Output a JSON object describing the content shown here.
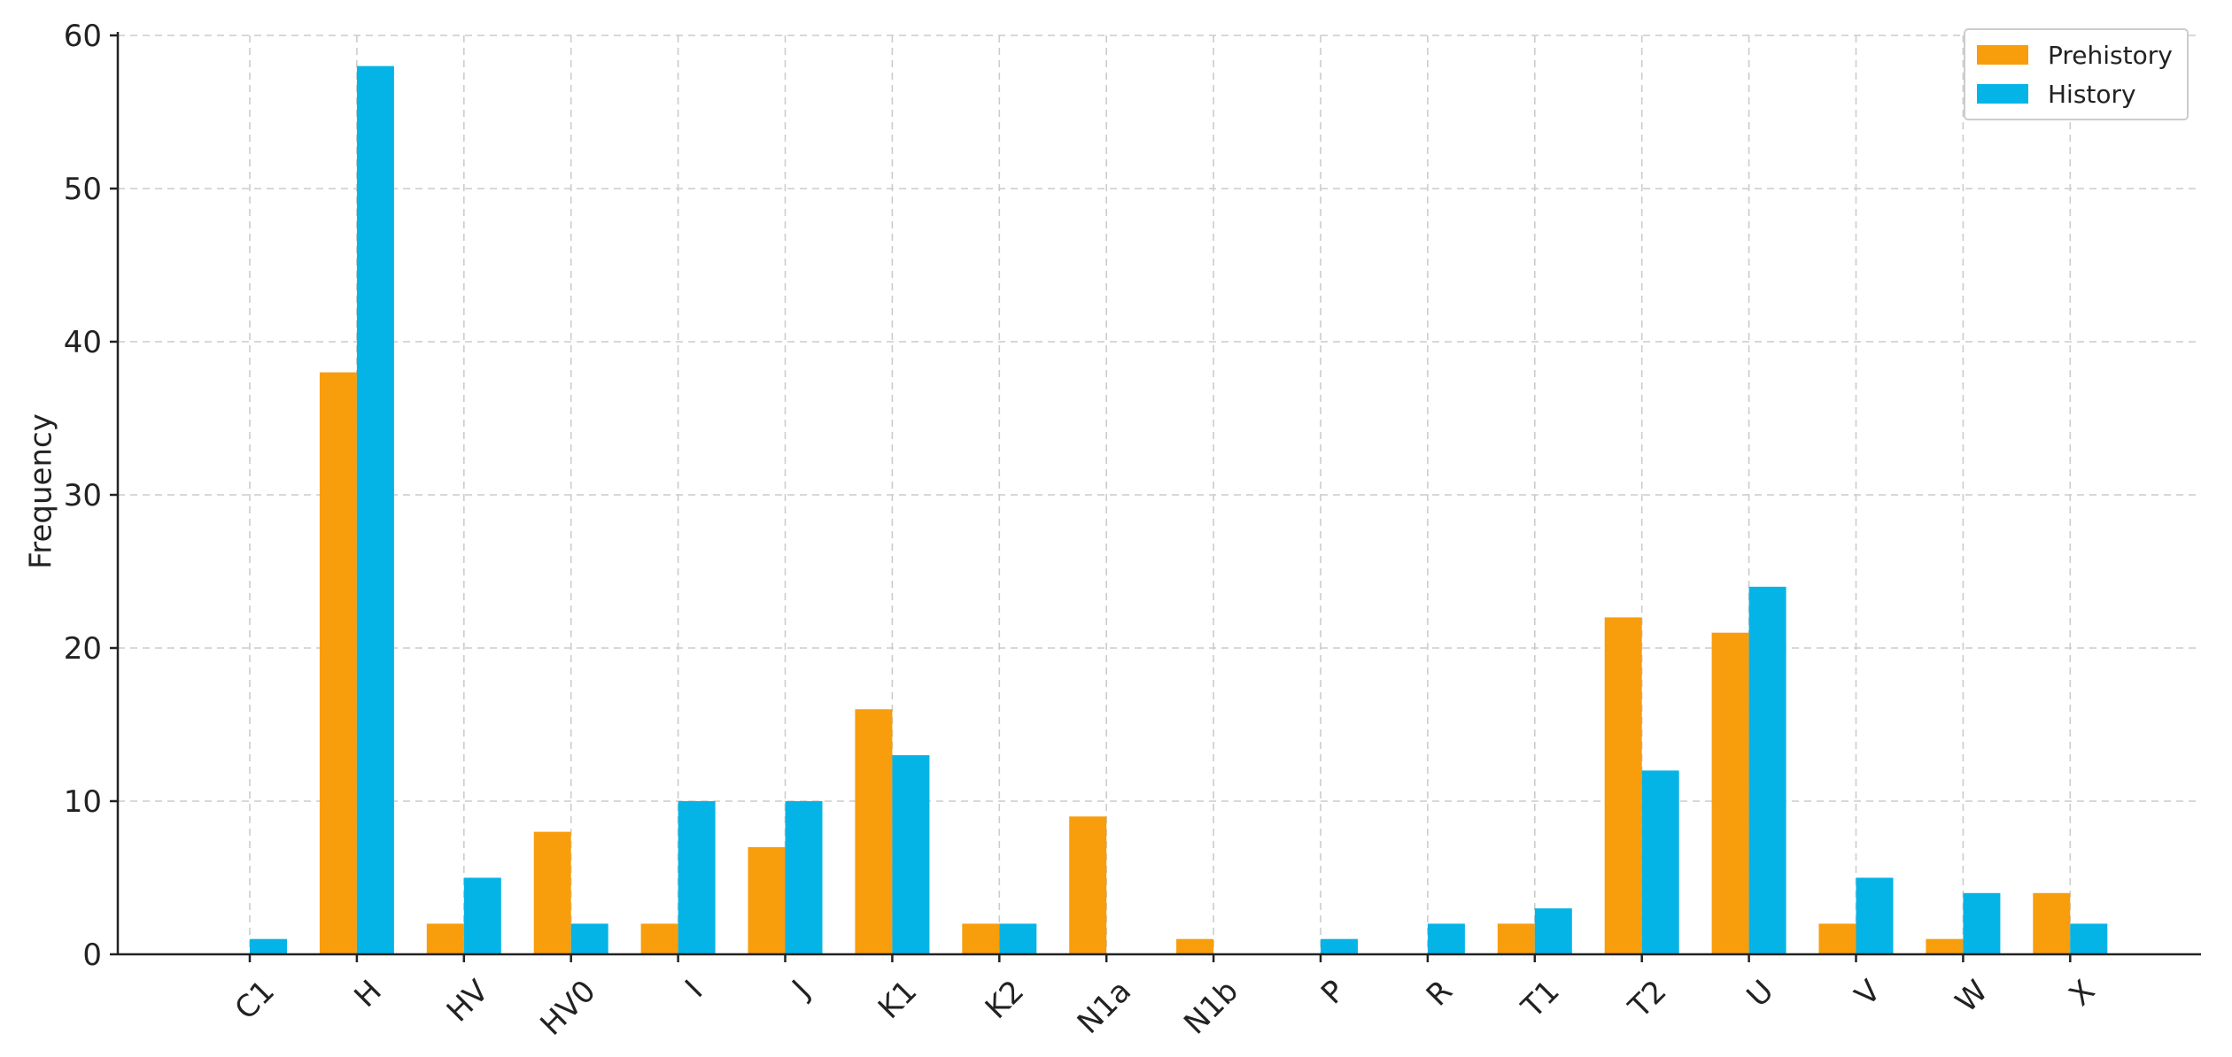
{
  "colors": {
    "prehistory": "#f89d0c",
    "history": "#05b4e6"
  },
  "chart_data": {
    "type": "bar",
    "categories": [
      "C1",
      "H",
      "HV",
      "HV0",
      "I",
      "J",
      "K1",
      "K2",
      "N1a",
      "N1b",
      "P",
      "R",
      "T1",
      "T2",
      "U",
      "V",
      "W",
      "X"
    ],
    "series": [
      {
        "name": "Prehistory",
        "values": [
          0,
          38,
          2,
          8,
          2,
          7,
          16,
          2,
          9,
          1,
          0,
          0,
          2,
          22,
          21,
          2,
          1,
          4
        ]
      },
      {
        "name": "History",
        "values": [
          1,
          58,
          5,
          2,
          10,
          10,
          13,
          2,
          0,
          0,
          1,
          2,
          3,
          12,
          24,
          5,
          4,
          2
        ]
      }
    ],
    "title": "",
    "xlabel": "",
    "ylabel": "Frequency",
    "ylim": [
      0,
      60
    ],
    "yticks": [
      0,
      10,
      20,
      30,
      40,
      50,
      60
    ],
    "grid": true,
    "legend_position": "top-right"
  }
}
